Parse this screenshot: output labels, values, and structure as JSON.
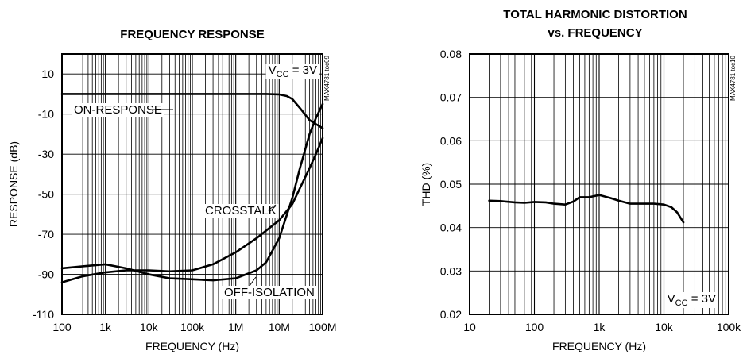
{
  "chart_data": [
    {
      "type": "line",
      "title": "FREQUENCY RESPONSE",
      "xlabel": "FREQUENCY (Hz)",
      "ylabel": "RESPONSE (dB)",
      "x_scale": "log",
      "xlim": [
        100,
        100000000
      ],
      "ylim": [
        -110,
        20
      ],
      "x_ticks": [
        100,
        1000,
        10000,
        100000,
        1000000,
        10000000,
        100000000
      ],
      "x_tick_labels": [
        "100",
        "1k",
        "10k",
        "100k",
        "1M",
        "10M",
        "100M"
      ],
      "y_ticks": [
        10,
        -10,
        -30,
        -50,
        -70,
        -90,
        -110
      ],
      "y_tick_labels": [
        "10",
        "-10",
        "-30",
        "-50",
        "-70",
        "-90",
        "-110"
      ],
      "grid": true,
      "side_text": "MAX4781 toc09",
      "condition": {
        "prefix": "V",
        "sub": "CC",
        "suffix": " = 3V"
      },
      "series": [
        {
          "name": "ON-RESPONSE",
          "x": [
            100,
            1000,
            10000,
            100000,
            1000000,
            5000000,
            10000000,
            15000000,
            20000000,
            30000000,
            50000000,
            70000000,
            100000000
          ],
          "values": [
            0,
            0,
            0,
            0,
            0,
            0,
            -0.2,
            -1,
            -2.5,
            -7,
            -13,
            -15,
            -17
          ]
        },
        {
          "name": "CROSSTALK",
          "x": [
            100,
            300,
            1000,
            3000,
            10000,
            30000,
            100000,
            300000,
            1000000,
            3000000,
            10000000,
            20000000,
            30000000,
            50000000,
            70000000,
            100000000
          ],
          "values": [
            -94,
            -91,
            -89,
            -88,
            -88,
            -88.5,
            -88,
            -85,
            -79,
            -72,
            -63,
            -55,
            -47,
            -37,
            -30,
            -22
          ]
        },
        {
          "name": "OFF-ISOLATION",
          "x": [
            100,
            300,
            1000,
            3000,
            10000,
            30000,
            100000,
            300000,
            1000000,
            3000000,
            5000000,
            10000000,
            20000000,
            30000000,
            50000000,
            70000000,
            100000000
          ],
          "values": [
            -87,
            -86,
            -85,
            -87,
            -90,
            -92,
            -92.5,
            -93,
            -92,
            -88,
            -84,
            -72,
            -52,
            -37,
            -20,
            -12,
            -5
          ]
        }
      ],
      "annotations": [
        "ON-RESPONSE",
        "CROSSTALK",
        "OFF-ISOLATION"
      ]
    },
    {
      "type": "line",
      "title": "TOTAL HARMONIC DISTORTION",
      "subtitle": "vs. FREQUENCY",
      "xlabel": "FREQUENCY (Hz)",
      "ylabel": "THD (%)",
      "x_scale": "log",
      "xlim": [
        10,
        100000
      ],
      "ylim": [
        0.02,
        0.08
      ],
      "x_ticks": [
        10,
        100,
        1000,
        10000,
        100000
      ],
      "x_tick_labels": [
        "10",
        "100",
        "1k",
        "10k",
        "100k"
      ],
      "y_ticks": [
        0.08,
        0.07,
        0.06,
        0.05,
        0.04,
        0.03,
        0.02
      ],
      "y_tick_labels": [
        "0.08",
        "0.07",
        "0.06",
        "0.05",
        "0.04",
        "0.03",
        "0.02"
      ],
      "grid": true,
      "side_text": "MAX4781 toc10",
      "condition": {
        "prefix": "V",
        "sub": "CC",
        "suffix": " = 3V"
      },
      "series": [
        {
          "x": [
            20,
            30,
            50,
            70,
            100,
            150,
            200,
            300,
            400,
            500,
            700,
            1000,
            1500,
            2000,
            3000,
            5000,
            7000,
            10000,
            13000,
            16000,
            20000
          ],
          "values": [
            0.0462,
            0.0461,
            0.0458,
            0.0457,
            0.0459,
            0.0458,
            0.0455,
            0.0453,
            0.046,
            0.047,
            0.047,
            0.0475,
            0.0468,
            0.0462,
            0.0455,
            0.0455,
            0.0455,
            0.0453,
            0.0447,
            0.0435,
            0.0412
          ]
        }
      ]
    }
  ]
}
